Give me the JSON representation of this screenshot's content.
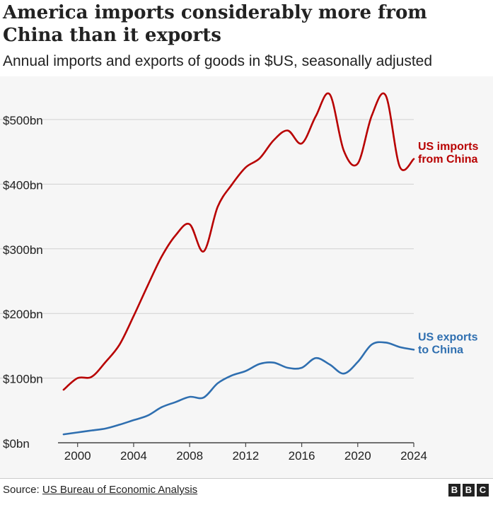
{
  "title": "America imports considerably more from China than it exports",
  "subtitle": "Annual imports and exports of goods in $US, seasonally adjusted",
  "source_label": "Source:",
  "source_name": "US Bureau of Economic Analysis",
  "logo": [
    "B",
    "B",
    "C"
  ],
  "colors": {
    "imports": "#b80000",
    "exports": "#2f6fb0",
    "grid": "#d0d0d0",
    "axis": "#444444"
  },
  "chart_data": {
    "type": "line",
    "xlim": [
      1998.5,
      2024
    ],
    "ylim": [
      0,
      500
    ],
    "x_ticks": [
      2000,
      2004,
      2008,
      2012,
      2016,
      2020,
      2024
    ],
    "y_ticks": [
      0,
      100,
      200,
      300,
      400,
      500
    ],
    "y_tick_labels": [
      "$0bn",
      "$100bn",
      "$200bn",
      "$300bn",
      "$400bn",
      "$500bn"
    ],
    "series": [
      {
        "name": "US imports from China",
        "label_lines": [
          "US imports",
          "from China"
        ],
        "x": [
          1999,
          2000,
          2001,
          2002,
          2003,
          2004,
          2005,
          2006,
          2007,
          2008,
          2009,
          2010,
          2011,
          2012,
          2013,
          2014,
          2015,
          2016,
          2017,
          2018,
          2019,
          2020,
          2021,
          2022,
          2023,
          2024
        ],
        "values": [
          82,
          100,
          102,
          125,
          152,
          196,
          243,
          288,
          321,
          338,
          296,
          365,
          399,
          426,
          440,
          468,
          483,
          463,
          505,
          539,
          452,
          432,
          506,
          537,
          427,
          439
        ]
      },
      {
        "name": "US exports to China",
        "label_lines": [
          "US exports",
          "to China"
        ],
        "x": [
          1999,
          2000,
          2001,
          2002,
          2003,
          2004,
          2005,
          2006,
          2007,
          2008,
          2009,
          2010,
          2011,
          2012,
          2013,
          2014,
          2015,
          2016,
          2017,
          2018,
          2019,
          2020,
          2021,
          2022,
          2023,
          2024
        ],
        "values": [
          13,
          16,
          19,
          22,
          28,
          35,
          42,
          55,
          63,
          71,
          70,
          92,
          104,
          111,
          122,
          124,
          116,
          116,
          131,
          121,
          107,
          125,
          152,
          155,
          148,
          144
        ]
      }
    ]
  }
}
